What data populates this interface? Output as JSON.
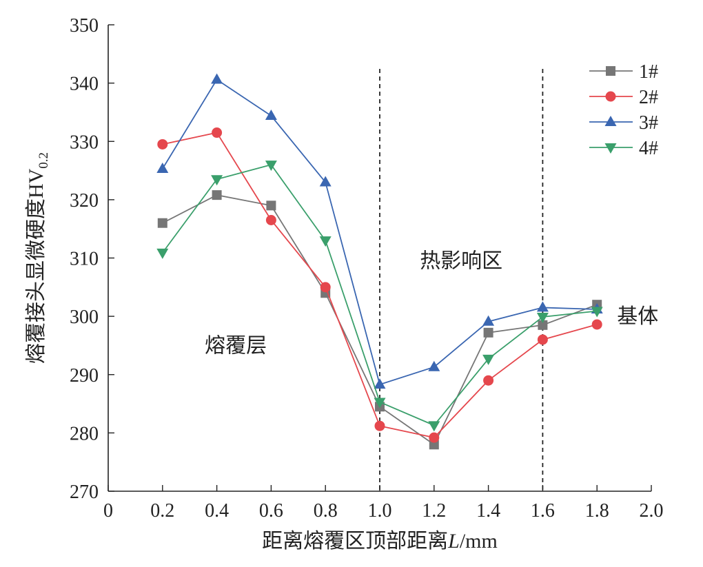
{
  "chart_data": {
    "type": "line",
    "xlabel_main": "距离熔覆区顶部距离",
    "xlabel_var": "L",
    "xlabel_unit": "/mm",
    "ylabel_main": "熔覆接头显微硬度HV",
    "ylabel_sub": "0.2",
    "xlim": [
      0,
      2.0
    ],
    "ylim": [
      270,
      350
    ],
    "xticks": [
      "0",
      "0.2",
      "0.4",
      "0.6",
      "0.8",
      "1.0",
      "1.2",
      "1.4",
      "1.6",
      "1.8",
      "2.0"
    ],
    "yticks": [
      "270",
      "280",
      "290",
      "300",
      "310",
      "320",
      "330",
      "340",
      "350"
    ],
    "x": [
      0.2,
      0.4,
      0.6,
      0.8,
      1.0,
      1.2,
      1.4,
      1.6,
      1.8
    ],
    "series": [
      {
        "name": "1#",
        "color": "#767676",
        "marker": "square",
        "values": [
          316,
          320.8,
          319,
          304,
          284.5,
          278,
          297.2,
          298.5,
          302
        ]
      },
      {
        "name": "2#",
        "color": "#e5474d",
        "marker": "circle",
        "values": [
          329.5,
          331.5,
          316.5,
          305,
          281.2,
          279.2,
          289,
          296,
          298.6
        ]
      },
      {
        "name": "3#",
        "color": "#3a66b1",
        "marker": "triangle-up",
        "values": [
          325.3,
          340.6,
          334.4,
          323,
          288.3,
          291.3,
          299.1,
          301.5,
          301.2
        ]
      },
      {
        "name": "4#",
        "color": "#3a9f6b",
        "marker": "triangle-down",
        "values": [
          310.9,
          323.5,
          326,
          313,
          285.3,
          281.3,
          292.7,
          299.9,
          300.9
        ]
      }
    ],
    "vlines": [
      1.0,
      1.6
    ],
    "annotations": [
      {
        "text": "熔覆层",
        "x": 0.47,
        "y": 295
      },
      {
        "text": "热影响区",
        "x": 1.3,
        "y": 309.5
      },
      {
        "text": "基体",
        "x": 1.95,
        "y": 300
      }
    ],
    "legend_position": "top-right",
    "grid": false
  }
}
